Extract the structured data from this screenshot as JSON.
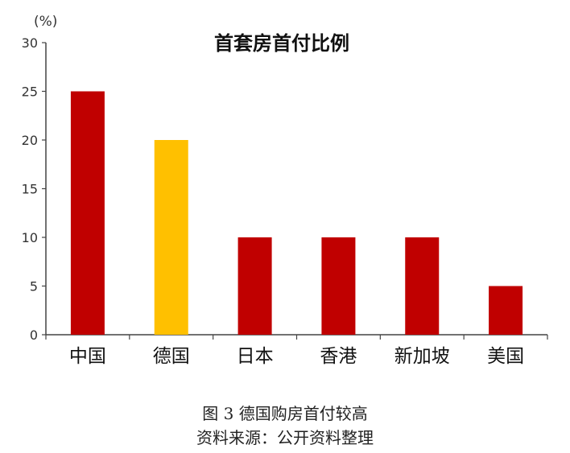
{
  "chart_data": {
    "type": "bar",
    "title": "首套房首付比例",
    "unit_label": "(%)",
    "categories": [
      "中国",
      "德国",
      "日本",
      "香港",
      "新加坡",
      "美国"
    ],
    "values": [
      25,
      20,
      10,
      10,
      10,
      5
    ],
    "bar_colors": [
      "#C00000",
      "#FFC000",
      "#C00000",
      "#C00000",
      "#C00000",
      "#C00000"
    ],
    "ylim": [
      0,
      30
    ],
    "yticks": [
      0,
      5,
      10,
      15,
      20,
      25,
      30
    ],
    "grid": false,
    "legend": "none"
  },
  "caption": {
    "line1": "图 3 德国购房首付较高",
    "line2": "资料来源：公开资料整理"
  }
}
